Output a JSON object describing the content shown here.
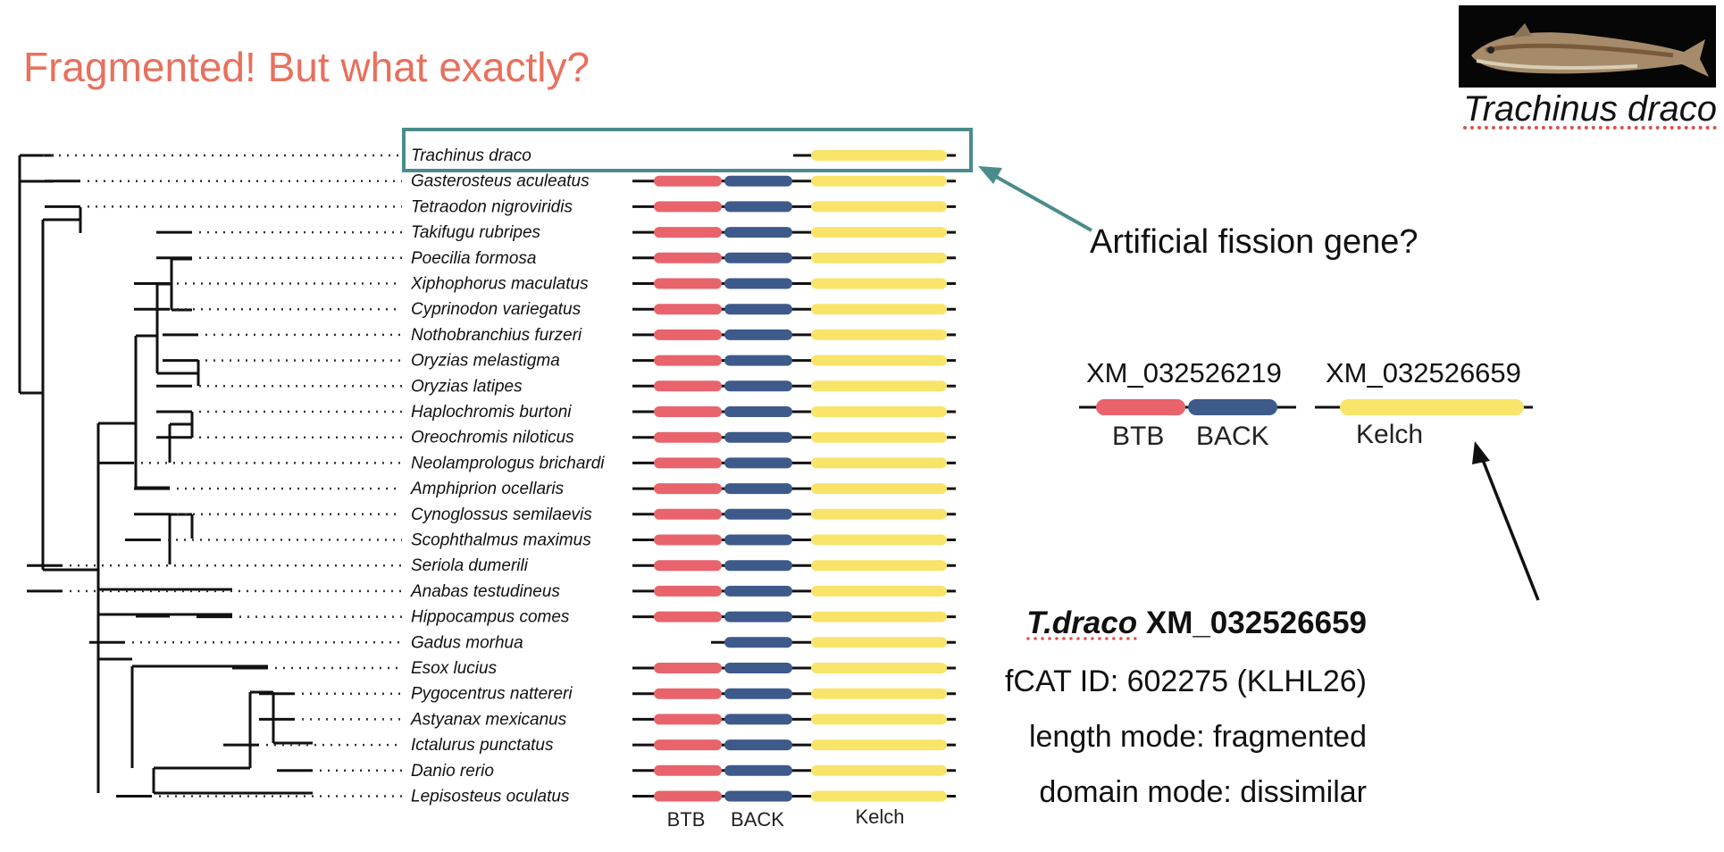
{
  "slide": {
    "title": "Fragmented! But what exactly?"
  },
  "photo": {
    "caption": "Trachinus draco",
    "icon": "fish-photo"
  },
  "tree": {
    "species": [
      {
        "name": "Trachinus draco",
        "domains": [
          "kelch"
        ],
        "highlighted": true
      },
      {
        "name": "Gasterosteus aculeatus",
        "domains": [
          "btb",
          "back",
          "kelch"
        ]
      },
      {
        "name": "Tetraodon nigroviridis",
        "domains": [
          "btb",
          "back",
          "kelch"
        ]
      },
      {
        "name": "Takifugu rubripes",
        "domains": [
          "btb",
          "back",
          "kelch"
        ]
      },
      {
        "name": "Poecilia formosa",
        "domains": [
          "btb",
          "back",
          "kelch"
        ]
      },
      {
        "name": "Xiphophorus maculatus",
        "domains": [
          "btb",
          "back",
          "kelch"
        ]
      },
      {
        "name": "Cyprinodon variegatus",
        "domains": [
          "btb",
          "back",
          "kelch"
        ]
      },
      {
        "name": "Nothobranchius furzeri",
        "domains": [
          "btb",
          "back",
          "kelch"
        ]
      },
      {
        "name": "Oryzias melastigma",
        "domains": [
          "btb",
          "back",
          "kelch"
        ]
      },
      {
        "name": "Oryzias latipes",
        "domains": [
          "btb",
          "back",
          "kelch"
        ]
      },
      {
        "name": "Haplochromis burtoni",
        "domains": [
          "btb",
          "back",
          "kelch"
        ]
      },
      {
        "name": "Oreochromis niloticus",
        "domains": [
          "btb",
          "back",
          "kelch"
        ]
      },
      {
        "name": "Neolamprologus brichardi",
        "domains": [
          "btb",
          "back",
          "kelch"
        ]
      },
      {
        "name": "Amphiprion ocellaris",
        "domains": [
          "btb",
          "back",
          "kelch"
        ]
      },
      {
        "name": "Cynoglossus semilaevis",
        "domains": [
          "btb",
          "back",
          "kelch"
        ]
      },
      {
        "name": "Scophthalmus maximus",
        "domains": [
          "btb",
          "back",
          "kelch"
        ]
      },
      {
        "name": "Seriola dumerili",
        "domains": [
          "btb",
          "back",
          "kelch"
        ]
      },
      {
        "name": "Anabas testudineus",
        "domains": [
          "btb",
          "back",
          "kelch"
        ]
      },
      {
        "name": "Hippocampus comes",
        "domains": [
          "btb",
          "back",
          "kelch"
        ]
      },
      {
        "name": "Gadus morhua",
        "domains": [
          "back",
          "kelch"
        ]
      },
      {
        "name": "Esox lucius",
        "domains": [
          "btb",
          "back",
          "kelch"
        ]
      },
      {
        "name": "Pygocentrus nattereri",
        "domains": [
          "btb",
          "back",
          "kelch"
        ]
      },
      {
        "name": "Astyanax mexicanus",
        "domains": [
          "btb",
          "back",
          "kelch"
        ]
      },
      {
        "name": "Ictalurus punctatus",
        "domains": [
          "btb",
          "back",
          "kelch"
        ]
      },
      {
        "name": "Danio rerio",
        "domains": [
          "btb",
          "back",
          "kelch"
        ]
      },
      {
        "name": "Lepisosteus oculatus",
        "domains": [
          "btb",
          "back",
          "kelch"
        ]
      }
    ],
    "domain_labels": {
      "btb": "BTB",
      "back": "BACK",
      "kelch": "Kelch"
    },
    "colors": {
      "btb": "#e8636b",
      "back": "#3d5a8a",
      "kelch": "#f9e46a",
      "highlight": "#4a8c8c",
      "arrow_dark": "#111111"
    }
  },
  "annotation": {
    "question": "Artificial fission gene?"
  },
  "fission": {
    "accession_1": "XM_032526219",
    "accession_2": "XM_032526659",
    "btb_label": "BTB",
    "back_label": "BACK",
    "kelch_label": "Kelch"
  },
  "details": {
    "species_abbrev": "T.draco",
    "accession": "XM_032526659",
    "line1": "fCAT ID: 602275  (KLHL26)",
    "line2": "length mode: fragmented",
    "line3": "domain mode: dissimilar"
  }
}
